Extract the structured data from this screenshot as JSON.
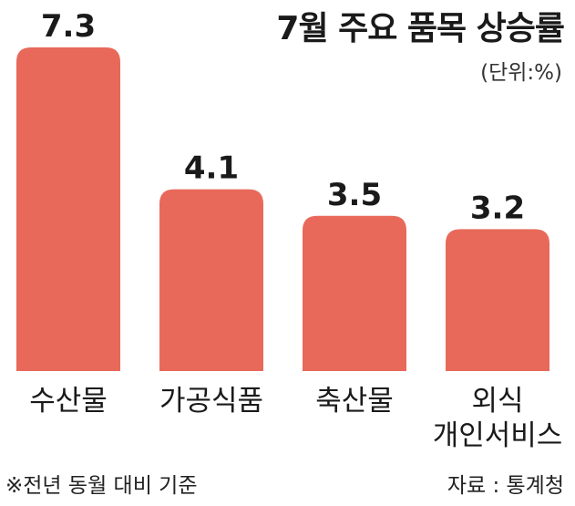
{
  "chart_data": {
    "type": "bar",
    "title": "7월 주요 품목 상승률",
    "unit_label": "(단위:%)",
    "categories": [
      "수산물",
      "가공식품",
      "축산물",
      "외식\n개인서비스"
    ],
    "values": [
      7.3,
      4.1,
      3.5,
      3.2
    ],
    "value_labels": [
      "7.3",
      "4.1",
      "3.5",
      "3.2"
    ],
    "bar_color": "#e8695a",
    "ylim": [
      0,
      7.3
    ],
    "grid": false,
    "legend": "none"
  },
  "footnote": "※전년 동월 대비 기준",
  "source": "자료 : 통계청"
}
